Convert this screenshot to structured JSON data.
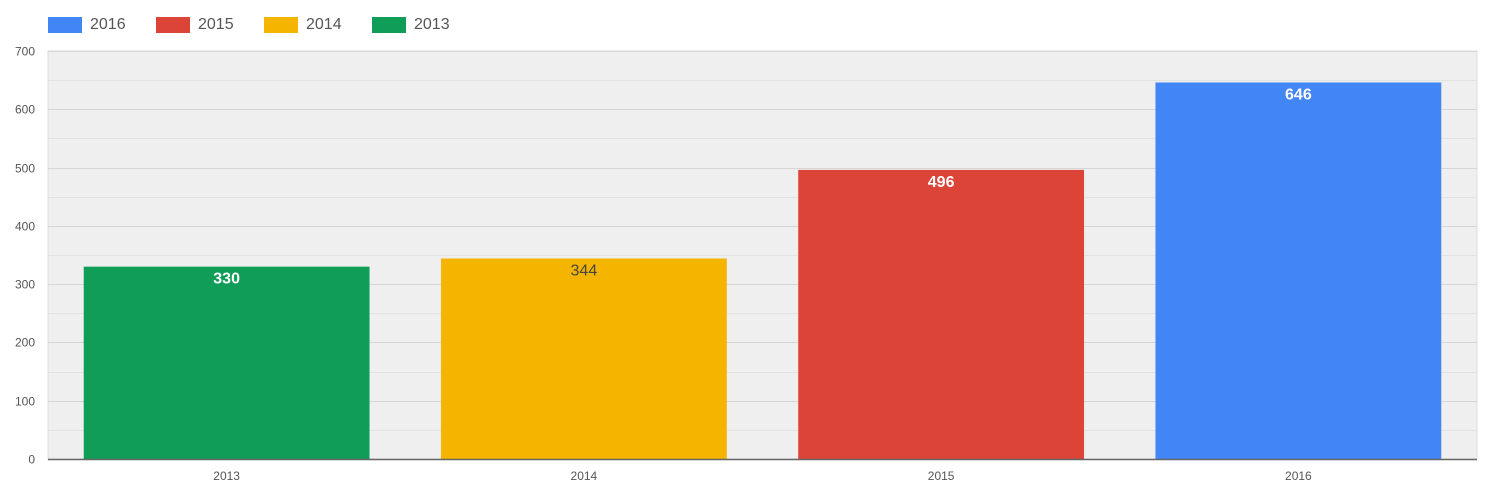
{
  "chart_data": {
    "type": "bar",
    "categories": [
      "2013",
      "2014",
      "2015",
      "2016"
    ],
    "values": [
      330,
      344,
      496,
      646
    ],
    "data_labels": [
      "330",
      "344",
      "496",
      "646"
    ],
    "bar_colors": [
      "#0f9d58",
      "#f4b400",
      "#db4437",
      "#4285f4"
    ],
    "label_colors": [
      "#ffffff",
      "#444444",
      "#ffffff",
      "#ffffff"
    ],
    "ylim": [
      0,
      700
    ],
    "yticks": [
      0,
      100,
      200,
      300,
      400,
      500,
      600,
      700
    ],
    "grid": true,
    "plot_background": "#efefef",
    "legend_position": "top-left",
    "legend": [
      {
        "label": "2016",
        "color": "#4285f4"
      },
      {
        "label": "2015",
        "color": "#db4437"
      },
      {
        "label": "2014",
        "color": "#f4b400"
      },
      {
        "label": "2013",
        "color": "#0f9d58"
      }
    ]
  }
}
